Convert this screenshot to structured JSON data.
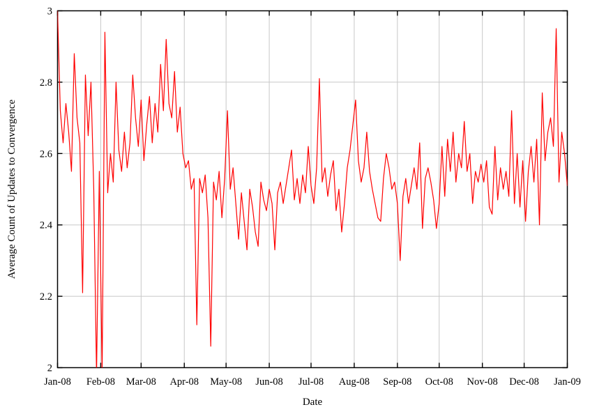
{
  "figure": {
    "background_color": "#ffffff",
    "frame_color": "#000000",
    "grid_color": "#c8c8c8"
  },
  "chart_data": {
    "type": "line",
    "title": "",
    "xlabel": "Date",
    "ylabel": "Average Count of Updates to Convergence",
    "legend": "none",
    "grid": true,
    "ylim": [
      2,
      3
    ],
    "xlim_days": [
      0,
      366
    ],
    "y_ticks": [
      {
        "value": 3,
        "label": "3"
      },
      {
        "value": 2.8,
        "label": "2.8"
      },
      {
        "value": 2.6,
        "label": "2.6"
      },
      {
        "value": 2.4,
        "label": "2.4"
      },
      {
        "value": 2.2,
        "label": "2.2"
      },
      {
        "value": 2,
        "label": "2"
      }
    ],
    "x_ticks": [
      {
        "day": 0,
        "label": "Jan-08"
      },
      {
        "day": 31,
        "label": "Feb-08"
      },
      {
        "day": 60,
        "label": "Mar-08"
      },
      {
        "day": 91,
        "label": "Apr-08"
      },
      {
        "day": 121,
        "label": "May-08"
      },
      {
        "day": 152,
        "label": "Jun-08"
      },
      {
        "day": 182,
        "label": "Jul-08"
      },
      {
        "day": 213,
        "label": "Aug-08"
      },
      {
        "day": 244,
        "label": "Sep-08"
      },
      {
        "day": 274,
        "label": "Oct-08"
      },
      {
        "day": 305,
        "label": "Nov-08"
      },
      {
        "day": 335,
        "label": "Dec-08"
      },
      {
        "day": 366,
        "label": "Jan-09"
      }
    ],
    "sampling_note": "values estimated from plot every 2 days; dips below axis are clipped at y=2",
    "series": [
      {
        "name": "average-updates-to-convergence",
        "color": "#ff0000",
        "x_days": [
          0,
          2,
          4,
          6,
          8,
          10,
          12,
          14,
          16,
          18,
          20,
          22,
          24,
          26,
          28,
          30,
          32,
          34,
          36,
          38,
          40,
          42,
          44,
          46,
          48,
          50,
          52,
          54,
          56,
          58,
          60,
          62,
          64,
          66,
          68,
          70,
          72,
          74,
          76,
          78,
          80,
          82,
          84,
          86,
          88,
          90,
          92,
          94,
          96,
          98,
          100,
          102,
          104,
          106,
          108,
          110,
          112,
          114,
          116,
          118,
          120,
          122,
          124,
          126,
          128,
          130,
          132,
          134,
          136,
          138,
          140,
          142,
          144,
          146,
          148,
          150,
          152,
          154,
          156,
          158,
          160,
          162,
          164,
          166,
          168,
          170,
          172,
          174,
          176,
          178,
          180,
          182,
          184,
          186,
          188,
          190,
          192,
          194,
          196,
          198,
          200,
          202,
          204,
          206,
          208,
          210,
          212,
          214,
          216,
          218,
          220,
          222,
          224,
          226,
          228,
          230,
          232,
          234,
          236,
          238,
          240,
          242,
          244,
          246,
          248,
          250,
          252,
          254,
          256,
          258,
          260,
          262,
          264,
          266,
          268,
          270,
          272,
          274,
          276,
          278,
          280,
          282,
          284,
          286,
          288,
          290,
          292,
          294,
          296,
          298,
          300,
          302,
          304,
          306,
          308,
          310,
          312,
          314,
          316,
          318,
          320,
          322,
          324,
          326,
          328,
          330,
          332,
          334,
          336,
          338,
          340,
          342,
          344,
          346,
          348,
          350,
          352,
          354,
          356,
          358,
          360,
          362,
          364,
          366
        ],
        "values": [
          3.0,
          2.72,
          2.63,
          2.74,
          2.66,
          2.55,
          2.88,
          2.7,
          2.63,
          2.21,
          2.82,
          2.65,
          2.8,
          2.5,
          1.98,
          2.55,
          1.98,
          2.94,
          2.49,
          2.6,
          2.52,
          2.8,
          2.61,
          2.55,
          2.66,
          2.56,
          2.63,
          2.82,
          2.7,
          2.62,
          2.75,
          2.58,
          2.68,
          2.76,
          2.63,
          2.74,
          2.66,
          2.85,
          2.72,
          2.92,
          2.74,
          2.7,
          2.83,
          2.66,
          2.73,
          2.6,
          2.56,
          2.58,
          2.5,
          2.53,
          2.12,
          2.53,
          2.49,
          2.54,
          2.42,
          2.06,
          2.52,
          2.47,
          2.55,
          2.42,
          2.53,
          2.72,
          2.5,
          2.56,
          2.46,
          2.36,
          2.49,
          2.41,
          2.33,
          2.5,
          2.45,
          2.38,
          2.34,
          2.52,
          2.47,
          2.44,
          2.5,
          2.46,
          2.33,
          2.49,
          2.52,
          2.46,
          2.51,
          2.56,
          2.61,
          2.47,
          2.53,
          2.46,
          2.54,
          2.49,
          2.62,
          2.51,
          2.46,
          2.56,
          2.81,
          2.52,
          2.56,
          2.48,
          2.54,
          2.58,
          2.44,
          2.5,
          2.38,
          2.46,
          2.56,
          2.61,
          2.68,
          2.75,
          2.58,
          2.52,
          2.56,
          2.66,
          2.55,
          2.5,
          2.46,
          2.42,
          2.41,
          2.53,
          2.6,
          2.56,
          2.5,
          2.52,
          2.46,
          2.3,
          2.48,
          2.53,
          2.46,
          2.51,
          2.56,
          2.5,
          2.63,
          2.39,
          2.53,
          2.56,
          2.52,
          2.47,
          2.39,
          2.46,
          2.62,
          2.48,
          2.64,
          2.55,
          2.66,
          2.52,
          2.6,
          2.56,
          2.69,
          2.55,
          2.6,
          2.46,
          2.55,
          2.52,
          2.57,
          2.52,
          2.58,
          2.45,
          2.43,
          2.62,
          2.47,
          2.56,
          2.5,
          2.55,
          2.48,
          2.72,
          2.46,
          2.6,
          2.45,
          2.58,
          2.41,
          2.55,
          2.62,
          2.52,
          2.64,
          2.4,
          2.77,
          2.58,
          2.66,
          2.7,
          2.62,
          2.95,
          2.52,
          2.66,
          2.6,
          2.51
        ]
      }
    ]
  }
}
